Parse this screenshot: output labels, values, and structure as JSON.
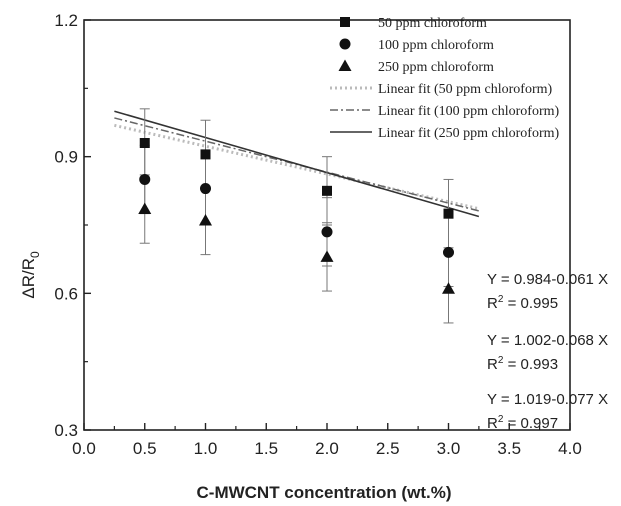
{
  "chart_data": {
    "type": "scatter",
    "title": "",
    "xlabel": "C-MWCNT concentration (wt.%)",
    "ylabel_main": "ΔR/R",
    "ylabel_sub": "0",
    "xlim": [
      0.0,
      4.0
    ],
    "ylim": [
      0.3,
      1.2
    ],
    "x_ticks": [
      "0.0",
      "0.5",
      "1.0",
      "1.5",
      "2.0",
      "2.5",
      "3.0",
      "3.5",
      "4.0"
    ],
    "y_ticks": [
      "0.3",
      "0.6",
      "0.9",
      "1.2"
    ],
    "x_tick_values": [
      0.0,
      0.5,
      1.0,
      1.5,
      2.0,
      2.5,
      3.0,
      3.5,
      4.0
    ],
    "y_tick_values": [
      0.3,
      0.6,
      0.9,
      1.2
    ],
    "grid": false,
    "legend_position": "top-right",
    "series": [
      {
        "name": "50 ppm chloroform",
        "marker": "square",
        "x": [
          0.5,
          1.0,
          2.0,
          3.0
        ],
        "y": [
          0.93,
          0.905,
          0.825,
          0.775
        ],
        "err": [
          0.075,
          0.075,
          0.075,
          0.075
        ]
      },
      {
        "name": "100 ppm chloroform",
        "marker": "circle",
        "x": [
          0.5,
          1.0,
          2.0,
          3.0
        ],
        "y": [
          0.85,
          0.83,
          0.735,
          0.69
        ],
        "err": [
          0.075,
          0.075,
          0.075,
          0.075
        ]
      },
      {
        "name": "250 ppm chloroform",
        "marker": "triangle",
        "x": [
          0.5,
          1.0,
          2.0,
          3.0
        ],
        "y": [
          0.785,
          0.76,
          0.68,
          0.61
        ],
        "err": [
          0.075,
          0.075,
          0.075,
          0.075
        ]
      }
    ],
    "fits": [
      {
        "name": "Linear fit (50 ppm chloroform)",
        "style": "dotted",
        "intercept": 0.984,
        "slope": -0.061,
        "x_range": [
          0.25,
          3.25
        ]
      },
      {
        "name": "Linear fit (100 ppm chloroform)",
        "style": "dashdot",
        "intercept": 1.002,
        "slope": -0.068,
        "x_range": [
          0.25,
          3.25
        ]
      },
      {
        "name": "Linear fit (250 ppm chloroform)",
        "style": "solid",
        "intercept": 1.019,
        "slope": -0.077,
        "x_range": [
          0.25,
          3.25
        ]
      }
    ],
    "annotations": [
      {
        "equation": "Y = 0.984-0.061 X",
        "r2_prefix": "R",
        "r2_sup": "2",
        "r2_value": " = 0.995"
      },
      {
        "equation": "Y = 1.002-0.068 X",
        "r2_prefix": "R",
        "r2_sup": "2",
        "r2_value": " = 0.993"
      },
      {
        "equation": "Y = 1.019-0.077 X",
        "r2_prefix": "R",
        "r2_sup": "2",
        "r2_value": " = 0.997"
      }
    ],
    "colors": {
      "axis": "#222222",
      "marker": "#111111",
      "fit_dotted": "#bbbbbb",
      "fit_dashdot": "#666666",
      "fit_solid": "#333333",
      "errorbar": "#777777"
    }
  }
}
